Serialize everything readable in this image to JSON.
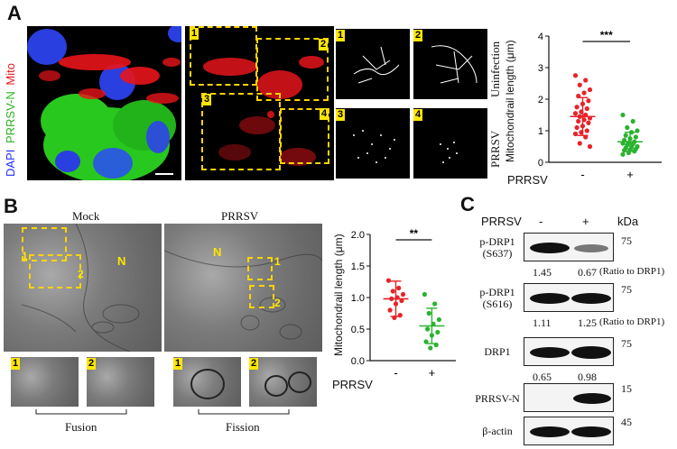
{
  "panels": {
    "a": "A",
    "b": "B",
    "c": "C"
  },
  "panelA": {
    "stain_labels": [
      "DAPI",
      "PRRSV-N",
      "Mito"
    ],
    "box_tags": [
      "1",
      "2",
      "3",
      "4"
    ],
    "row_labels": [
      "Uninfection",
      "PRRSV"
    ],
    "chart": {
      "ylabel": "Mitochondrail length (μm)",
      "yticks": [
        "0",
        "1",
        "2",
        "3",
        "4"
      ],
      "xcats": [
        "-",
        "+"
      ],
      "xlabel": "PRRSV",
      "sig": "***"
    }
  },
  "panelB": {
    "titles": [
      "Mock",
      "PRRSV"
    ],
    "box_tags": [
      "1",
      "2",
      "1",
      "2"
    ],
    "n_label": "N",
    "inset_tags": [
      "1",
      "2",
      "1",
      "2"
    ],
    "under_labels": [
      "Fusion",
      "Fission"
    ],
    "chart": {
      "ylabel": "Mitochondrail length (μm)",
      "yticks": [
        "0.0",
        "0.5",
        "1.0",
        "1.5",
        "2.0"
      ],
      "xcats": [
        "-",
        "+"
      ],
      "xlabel": "PRRSV",
      "sig": "**"
    }
  },
  "panelC": {
    "header": {
      "prrsv": "PRRSV",
      "minus": "-",
      "plus": "+",
      "kda": "kDa"
    },
    "rows": [
      {
        "label": "p-DRP1\n(S637)",
        "mw": "75",
        "q1": "1.45",
        "q2": "0.67",
        "ratio": "(Ratio to DRP1)"
      },
      {
        "label": "p-DRP1\n(S616)",
        "mw": "75",
        "q1": "1.11",
        "q2": "1.25",
        "ratio": "(Ratio to DRP1)"
      },
      {
        "label": "DRP1",
        "mw": "75",
        "q1": "0.65",
        "q2": "0.98",
        "ratio": ""
      },
      {
        "label": "PRRSV-N",
        "mw": "15",
        "q1": "",
        "q2": "",
        "ratio": ""
      },
      {
        "label": "β-actin",
        "mw": "45",
        "q1": "",
        "q2": "",
        "ratio": ""
      }
    ]
  },
  "chart_data": [
    {
      "type": "scatter",
      "ylabel": "Mitochondrail length (μm)",
      "xlabel": "PRRSV",
      "categories": [
        "-",
        "+"
      ],
      "ylim": [
        0,
        4
      ],
      "series": [
        {
          "category": "-",
          "color": "#e8232a",
          "mean": 1.45,
          "sd": 0.6,
          "values": [
            2.75,
            2.6,
            2.45,
            2.3,
            2.2,
            2.1,
            1.95,
            1.85,
            1.75,
            1.7,
            1.6,
            1.55,
            1.5,
            1.45,
            1.4,
            1.35,
            1.3,
            1.25,
            1.15,
            1.1,
            1.0,
            0.95,
            0.9,
            0.8,
            0.6,
            0.5
          ]
        },
        {
          "category": "+",
          "color": "#2bb32f",
          "mean": 0.65,
          "sd": 0.3,
          "values": [
            1.5,
            1.3,
            1.1,
            1.0,
            0.95,
            0.85,
            0.8,
            0.75,
            0.7,
            0.65,
            0.62,
            0.6,
            0.58,
            0.55,
            0.5,
            0.48,
            0.45,
            0.42,
            0.4,
            0.38,
            0.35,
            0.3,
            0.25
          ]
        }
      ]
    },
    {
      "type": "scatter",
      "ylabel": "Mitochondrail length (μm)",
      "xlabel": "PRRSV",
      "categories": [
        "-",
        "+"
      ],
      "ylim": [
        0,
        2
      ],
      "series": [
        {
          "category": "-",
          "color": "#e8232a",
          "mean": 0.98,
          "sd": 0.28,
          "values": [
            1.27,
            1.15,
            1.1,
            1.05,
            1.0,
            0.98,
            0.95,
            0.9,
            0.8,
            0.72,
            0.68
          ]
        },
        {
          "category": "+",
          "color": "#2bb32f",
          "mean": 0.55,
          "sd": 0.28,
          "values": [
            1.05,
            0.9,
            0.75,
            0.65,
            0.58,
            0.5,
            0.45,
            0.4,
            0.3,
            0.25,
            0.2
          ]
        }
      ]
    }
  ]
}
